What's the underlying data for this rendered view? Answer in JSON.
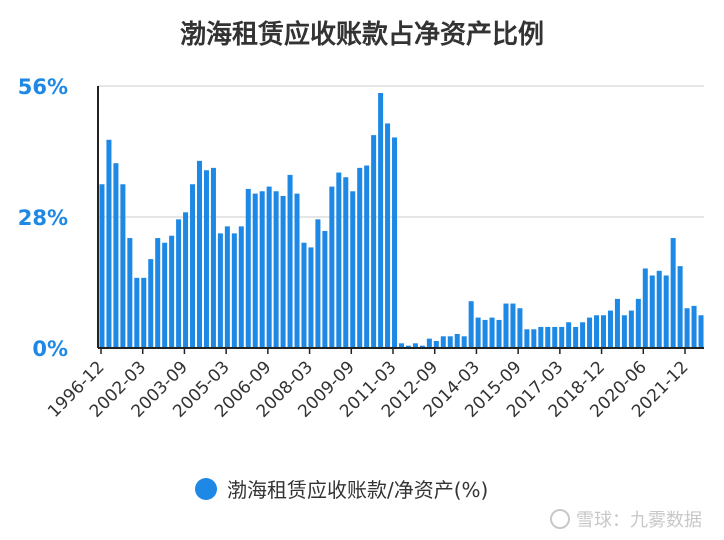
{
  "colors": {
    "bar": "#1e88e5",
    "ytick": "#1e88e5",
    "grid": "#dddddd",
    "axis": "#222222",
    "text": "#333333"
  },
  "legend": {
    "label": "渤海租赁应收账款/净资产(%)",
    "placement": "bottom"
  },
  "watermark": "雪球：九雾数据",
  "chart_data": {
    "type": "bar",
    "title": "渤海租赁应收账款占净资产比例",
    "ylim": [
      0,
      56
    ],
    "yticks": [
      0,
      28,
      56
    ],
    "yticklabels": [
      "0%",
      "28%",
      "56%"
    ],
    "grid": true,
    "xticklabels": [
      "1996-12",
      "2002-03",
      "2003-09",
      "2005-03",
      "2006-09",
      "2008-03",
      "2009-09",
      "2011-03",
      "2012-09",
      "2014-03",
      "2015-09",
      "2017-03",
      "2018-12",
      "2020-06",
      "2021-12"
    ],
    "series": [
      {
        "name": "渤海租赁应收账款/净资产(%)",
        "values": [
          35,
          44.5,
          39.5,
          35,
          23.5,
          15,
          15,
          19,
          23.5,
          22.5,
          24,
          27.5,
          29,
          35,
          40,
          38,
          38.5,
          24.5,
          26,
          24.5,
          26,
          34,
          33,
          33.5,
          34.5,
          33.5,
          32.5,
          37,
          33,
          22.5,
          21.5,
          27.5,
          25,
          34.5,
          37.5,
          36.5,
          33.5,
          38.5,
          39,
          45.5,
          54.5,
          48,
          45,
          1,
          0.5,
          1,
          0.5,
          2,
          1.5,
          2.5,
          2.5,
          3,
          2.5,
          10,
          6.5,
          6,
          6.5,
          6,
          9.5,
          9.5,
          8.5,
          4,
          4,
          4.5,
          4.5,
          4.5,
          4.5,
          5.5,
          4.5,
          5.5,
          6.5,
          7,
          7,
          8,
          10.5,
          7,
          8,
          10.5,
          17,
          15.5,
          16.5,
          15.5,
          23.5,
          17.5,
          8.5,
          9,
          7
        ]
      }
    ]
  }
}
